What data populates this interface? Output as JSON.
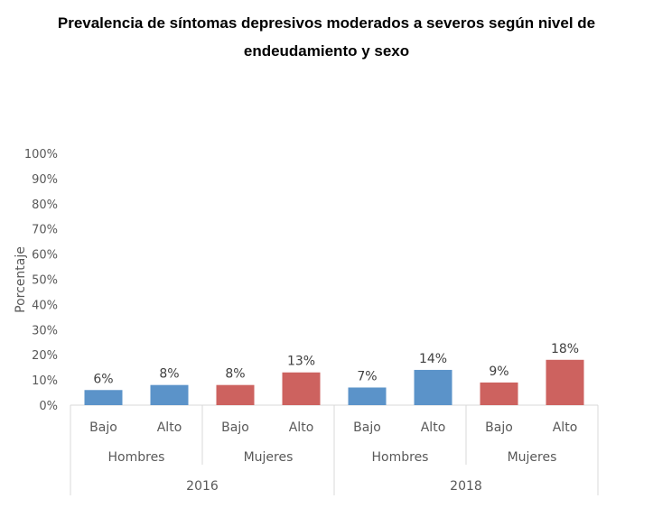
{
  "chart_data": {
    "type": "bar",
    "title": "Prevalencia de síntomas depresivos moderados a severos según nivel de endeudamiento y sexo",
    "title_lines": [
      "Prevalencia de síntomas depresivos moderados a severos según nivel de",
      "endeudamiento y sexo"
    ],
    "xlabel": "",
    "ylabel": "Porcentaje",
    "ylim": [
      0,
      100
    ],
    "yticks": [
      0,
      10,
      20,
      30,
      40,
      50,
      60,
      70,
      80,
      90,
      100
    ],
    "ytick_labels": [
      "0%",
      "10%",
      "20%",
      "30%",
      "40%",
      "50%",
      "60%",
      "70%",
      "80%",
      "90%",
      "100%"
    ],
    "grid": false,
    "legend": "none",
    "colors": {
      "Hombres": "#5b93c9",
      "Mujeres": "#cd625f"
    },
    "groups": [
      {
        "year": "2016",
        "sexes": [
          {
            "sex": "Hombres",
            "bars": [
              {
                "level": "Bajo",
                "value": 6,
                "label": "6%"
              },
              {
                "level": "Alto",
                "value": 8,
                "label": "8%"
              }
            ]
          },
          {
            "sex": "Mujeres",
            "bars": [
              {
                "level": "Bajo",
                "value": 8,
                "label": "8%"
              },
              {
                "level": "Alto",
                "value": 13,
                "label": "13%"
              }
            ]
          }
        ]
      },
      {
        "year": "2018",
        "sexes": [
          {
            "sex": "Hombres",
            "bars": [
              {
                "level": "Bajo",
                "value": 7,
                "label": "7%"
              },
              {
                "level": "Alto",
                "value": 14,
                "label": "14%"
              }
            ]
          },
          {
            "sex": "Mujeres",
            "bars": [
              {
                "level": "Bajo",
                "value": 9,
                "label": "9%"
              },
              {
                "level": "Alto",
                "value": 18,
                "label": "18%"
              }
            ]
          }
        ]
      }
    ]
  }
}
